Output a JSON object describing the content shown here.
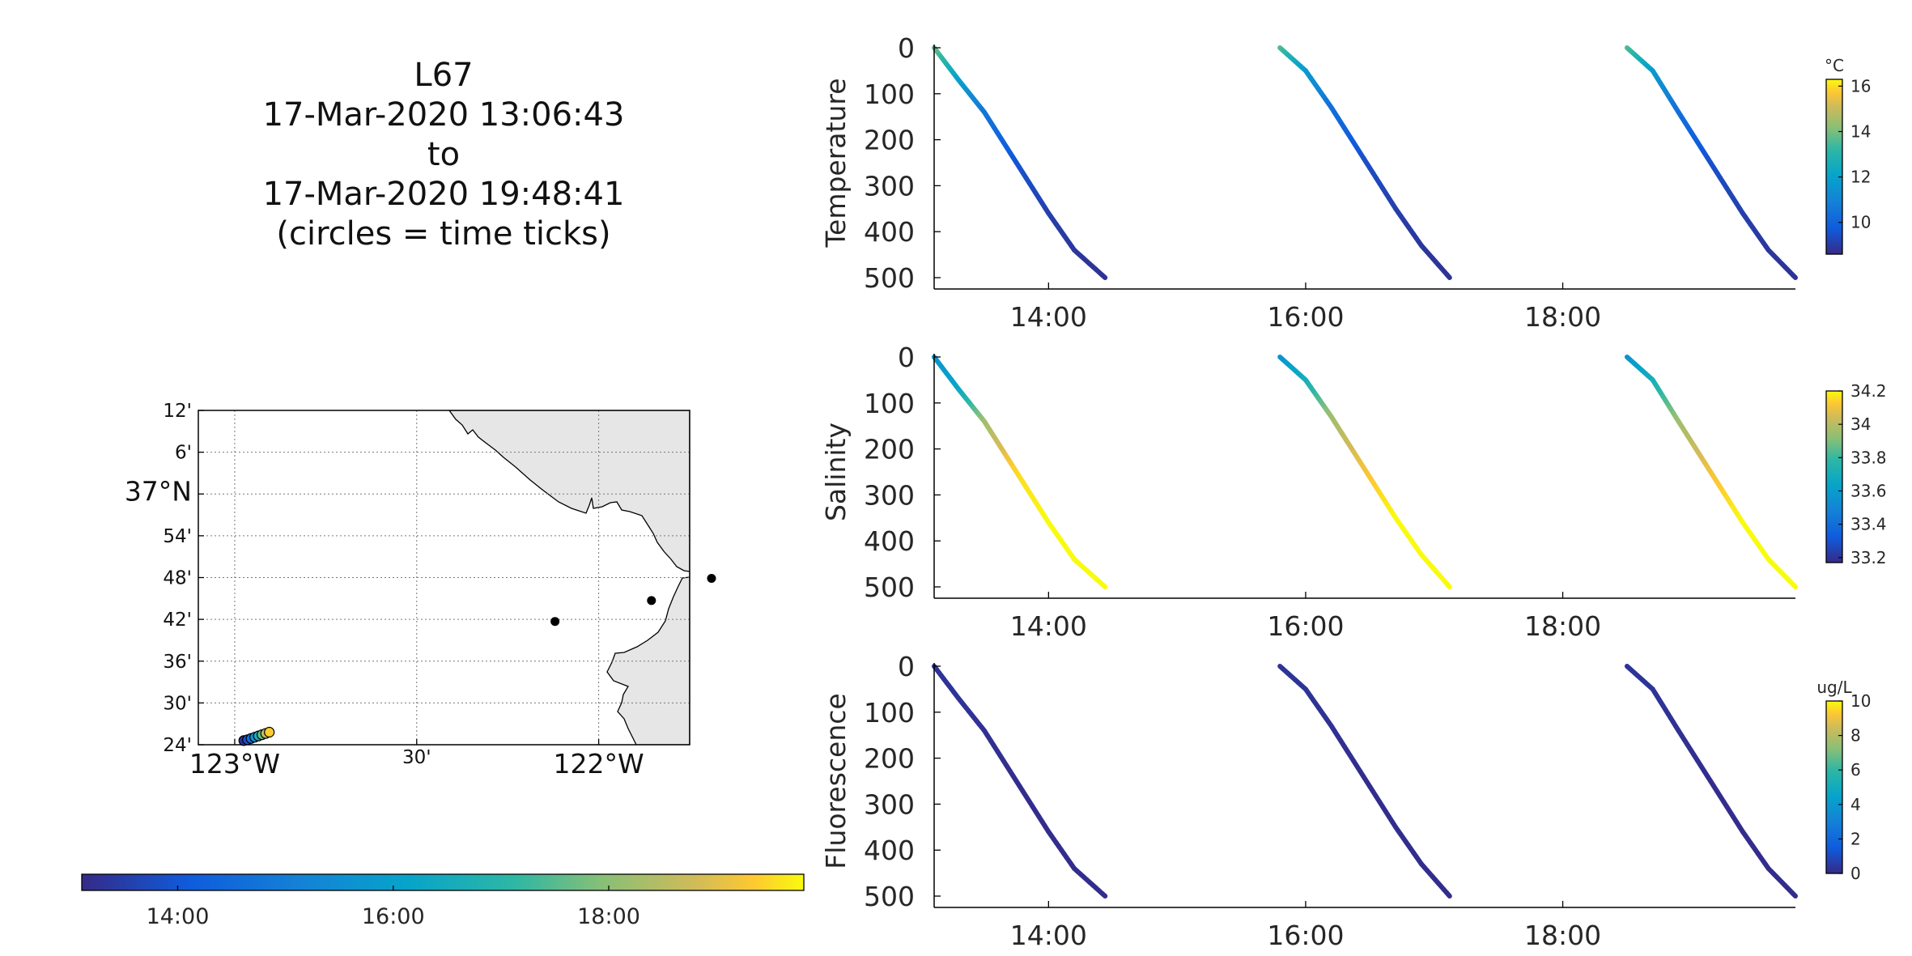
{
  "title": {
    "lines": [
      "L67",
      "17-Mar-2020 13:06:43",
      "to",
      "17-Mar-2020 19:48:41",
      "(circles = time ticks)"
    ]
  },
  "map": {
    "lat_ticks": [
      {
        "label": "12'",
        "value": 37.2
      },
      {
        "label": "6'",
        "value": 37.1
      },
      {
        "label": "37°N",
        "value": 37.0,
        "major": true
      },
      {
        "label": "54'",
        "value": 36.9
      },
      {
        "label": "48'",
        "value": 36.8
      },
      {
        "label": "42'",
        "value": 36.7
      },
      {
        "label": "36'",
        "value": 36.6
      },
      {
        "label": "30'",
        "value": 36.5
      },
      {
        "label": "24'",
        "value": 36.4
      }
    ],
    "lon_ticks": [
      {
        "label": "123°W",
        "value": -123.0,
        "major": true
      },
      {
        "label": "30'",
        "value": -122.5
      },
      {
        "label": "122°W",
        "value": -122.0,
        "major": true
      }
    ],
    "lon_range": [
      -123.1,
      -121.75
    ],
    "lat_range": [
      36.4,
      37.2
    ],
    "stations": [
      {
        "lon": -122.12,
        "lat": 36.695
      },
      {
        "lon": -121.855,
        "lat": 36.745
      },
      {
        "lon": -121.69,
        "lat": 36.798
      }
    ],
    "glider_track": [
      {
        "lon": -122.975,
        "lat": 36.41,
        "time": 13.2
      },
      {
        "lon": -122.965,
        "lat": 36.412,
        "time": 13.9
      },
      {
        "lon": -122.955,
        "lat": 36.415,
        "time": 14.6
      },
      {
        "lon": -122.945,
        "lat": 36.418,
        "time": 15.6
      },
      {
        "lon": -122.935,
        "lat": 36.421,
        "time": 16.6
      },
      {
        "lon": -122.925,
        "lat": 36.424,
        "time": 17.6
      },
      {
        "lon": -122.915,
        "lat": 36.427,
        "time": 18.6
      },
      {
        "lon": -122.905,
        "lat": 36.43,
        "time": 19.4
      }
    ],
    "land_color": "#e6e6e6"
  },
  "time_colorbar": {
    "ticks": [
      "14:00",
      "16:00",
      "18:00"
    ],
    "tick_values": [
      14,
      16,
      18
    ],
    "range": [
      13.11,
      19.81
    ],
    "colormap": "parula"
  },
  "chart_data": [
    {
      "type": "scatter",
      "ylabel": "Temperature",
      "colorbar_unit": "°C",
      "colorbar_ticks": [
        "16",
        "14",
        "12",
        "10"
      ],
      "colorbar_tick_values": [
        16,
        14,
        12,
        10
      ],
      "colorbar_range": [
        8.6,
        16.3
      ],
      "xlim": [
        13.11,
        19.81
      ],
      "ylim": [
        0,
        500
      ],
      "y_reversed": true,
      "yticks": [
        0,
        100,
        200,
        300,
        400,
        500
      ],
      "xticks": [
        "14:00",
        "16:00",
        "18:00"
      ],
      "xtick_values": [
        14,
        16,
        18
      ],
      "profiles": [
        {
          "t": [
            13.11,
            13.3,
            13.5,
            13.75,
            14.0,
            14.2,
            14.44
          ],
          "depth": [
            0,
            70,
            140,
            250,
            360,
            440,
            500
          ],
          "value": [
            13.9,
            12.0,
            10.6,
            9.6,
            9.1,
            8.9,
            8.8
          ]
        },
        {
          "t": [
            15.8,
            16.0,
            16.2,
            16.45,
            16.7,
            16.9,
            17.12
          ],
          "depth": [
            0,
            50,
            130,
            240,
            350,
            430,
            500
          ],
          "value": [
            13.6,
            11.8,
            10.4,
            9.5,
            9.1,
            8.9,
            8.8
          ]
        },
        {
          "t": [
            18.5,
            18.7,
            18.9,
            19.15,
            19.4,
            19.6,
            19.81
          ],
          "depth": [
            0,
            50,
            140,
            250,
            360,
            440,
            500
          ],
          "value": [
            13.6,
            11.8,
            10.4,
            9.5,
            9.1,
            8.9,
            8.8
          ]
        }
      ]
    },
    {
      "type": "scatter",
      "ylabel": "Salinity",
      "colorbar_unit": "",
      "colorbar_ticks": [
        "34.2",
        "34",
        "33.8",
        "33.6",
        "33.4",
        "33.2"
      ],
      "colorbar_tick_values": [
        34.2,
        34.0,
        33.8,
        33.6,
        33.4,
        33.2
      ],
      "colorbar_range": [
        33.17,
        34.2
      ],
      "xlim": [
        13.11,
        19.81
      ],
      "ylim": [
        0,
        500
      ],
      "y_reversed": true,
      "yticks": [
        0,
        100,
        200,
        300,
        400,
        500
      ],
      "xticks": [
        "14:00",
        "16:00",
        "18:00"
      ],
      "xtick_values": [
        14,
        16,
        18
      ],
      "profiles": [
        {
          "t": [
            13.11,
            13.3,
            13.5,
            13.75,
            14.0,
            14.2,
            14.44
          ],
          "depth": [
            0,
            70,
            140,
            250,
            360,
            440,
            500
          ],
          "value": [
            33.55,
            33.65,
            33.95,
            34.15,
            34.2,
            34.2,
            34.2
          ]
        },
        {
          "t": [
            15.8,
            16.0,
            16.2,
            16.45,
            16.7,
            16.9,
            17.12
          ],
          "depth": [
            0,
            50,
            130,
            240,
            350,
            430,
            500
          ],
          "value": [
            33.55,
            33.7,
            33.95,
            34.1,
            34.2,
            34.2,
            34.2
          ]
        },
        {
          "t": [
            18.5,
            18.7,
            18.9,
            19.15,
            19.4,
            19.6,
            19.81
          ],
          "depth": [
            0,
            50,
            140,
            250,
            360,
            440,
            500
          ],
          "value": [
            33.55,
            33.7,
            33.95,
            34.1,
            34.2,
            34.2,
            34.2
          ]
        }
      ]
    },
    {
      "type": "scatter",
      "ylabel": "Fluorescence",
      "colorbar_unit": "ug/L",
      "colorbar_ticks": [
        "10",
        "8",
        "6",
        "4",
        "2",
        "0"
      ],
      "colorbar_tick_values": [
        10,
        8,
        6,
        4,
        2,
        0
      ],
      "colorbar_range": [
        0,
        10
      ],
      "xlim": [
        13.11,
        19.81
      ],
      "ylim": [
        0,
        500
      ],
      "y_reversed": true,
      "yticks": [
        0,
        100,
        200,
        300,
        400,
        500
      ],
      "xticks": [
        "14:00",
        "16:00",
        "18:00"
      ],
      "xtick_values": [
        14,
        16,
        18
      ],
      "profiles": [
        {
          "t": [
            13.11,
            13.3,
            13.5,
            13.75,
            14.0,
            14.2,
            14.44
          ],
          "depth": [
            0,
            70,
            140,
            250,
            360,
            440,
            500
          ],
          "value": [
            0.3,
            0.3,
            0.2,
            0.1,
            0.1,
            0.1,
            0.1
          ]
        },
        {
          "t": [
            15.8,
            16.0,
            16.2,
            16.45,
            16.7,
            16.9,
            17.12
          ],
          "depth": [
            0,
            50,
            130,
            240,
            350,
            430,
            500
          ],
          "value": [
            0.3,
            0.3,
            0.2,
            0.1,
            0.1,
            0.1,
            0.1
          ]
        },
        {
          "t": [
            18.5,
            18.7,
            18.9,
            19.15,
            19.4,
            19.6,
            19.81
          ],
          "depth": [
            0,
            50,
            140,
            250,
            360,
            440,
            500
          ],
          "value": [
            0.3,
            0.3,
            0.2,
            0.1,
            0.1,
            0.1,
            0.1
          ]
        }
      ]
    }
  ]
}
